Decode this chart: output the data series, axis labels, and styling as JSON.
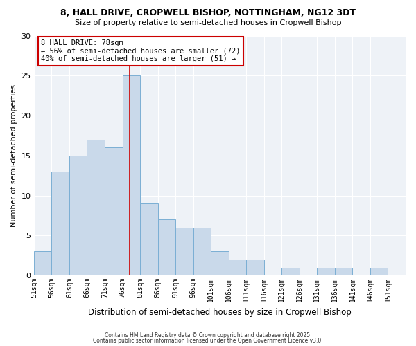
{
  "title1": "8, HALL DRIVE, CROPWELL BISHOP, NOTTINGHAM, NG12 3DT",
  "title2": "Size of property relative to semi-detached houses in Cropwell Bishop",
  "xlabel": "Distribution of semi-detached houses by size in Cropwell Bishop",
  "ylabel": "Number of semi-detached properties",
  "bin_labels": [
    "51sqm",
    "56sqm",
    "61sqm",
    "66sqm",
    "71sqm",
    "76sqm",
    "81sqm",
    "86sqm",
    "91sqm",
    "96sqm",
    "101sqm",
    "106sqm",
    "111sqm",
    "116sqm",
    "121sqm",
    "126sqm",
    "131sqm",
    "136sqm",
    "141sqm",
    "146sqm",
    "151sqm"
  ],
  "bin_edges": [
    51,
    56,
    61,
    66,
    71,
    76,
    81,
    86,
    91,
    96,
    101,
    106,
    111,
    116,
    121,
    126,
    131,
    136,
    141,
    146,
    151,
    156
  ],
  "counts": [
    3,
    13,
    15,
    17,
    16,
    25,
    9,
    7,
    6,
    6,
    3,
    2,
    2,
    0,
    1,
    0,
    1,
    1,
    0,
    1,
    0
  ],
  "marker_value": 78,
  "bar_color": "#c9d9ea",
  "bar_edge_color": "#7bafd4",
  "marker_line_color": "#cc0000",
  "box_edge_color": "#cc0000",
  "annotation_title": "8 HALL DRIVE: 78sqm",
  "annotation_line2": "← 56% of semi-detached houses are smaller (72)",
  "annotation_line3": "40% of semi-detached houses are larger (51) →",
  "ylim": [
    0,
    30
  ],
  "yticks": [
    0,
    5,
    10,
    15,
    20,
    25,
    30
  ],
  "footer1": "Contains HM Land Registry data © Crown copyright and database right 2025.",
  "footer2": "Contains public sector information licensed under the Open Government Licence v3.0.",
  "bg_color": "#ffffff",
  "plot_bg_color": "#eef2f7",
  "grid_color": "#ffffff"
}
